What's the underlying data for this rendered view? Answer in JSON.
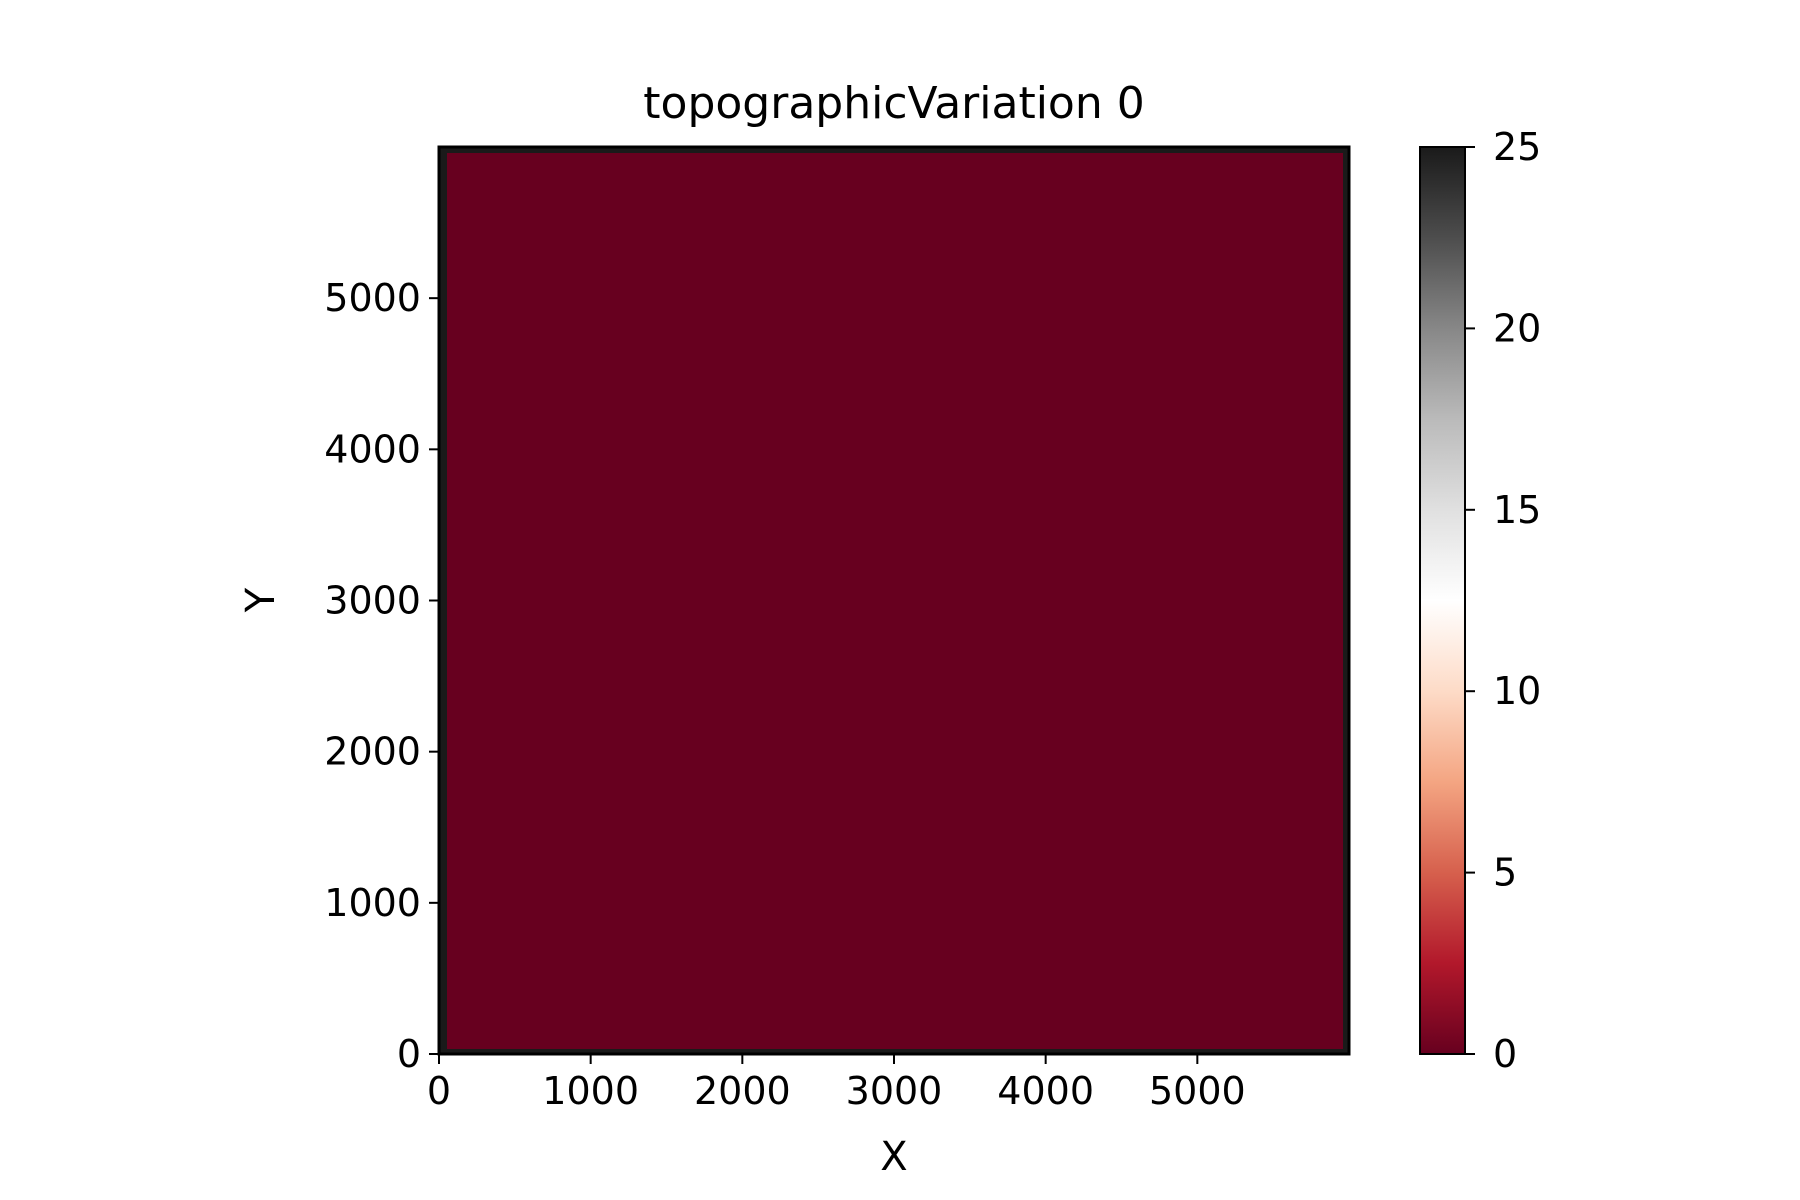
{
  "chart_data": {
    "type": "heatmap",
    "title": "topographicVariation 0",
    "xlabel": "X",
    "ylabel": "Y",
    "xlim": [
      0,
      6000
    ],
    "ylim": [
      0,
      6000
    ],
    "xticks": [
      0,
      1000,
      2000,
      3000,
      4000,
      5000
    ],
    "yticks": [
      0,
      1000,
      2000,
      3000,
      4000,
      5000
    ],
    "xtick_labels": [
      "0",
      "1000",
      "2000",
      "3000",
      "4000",
      "5000"
    ],
    "ytick_labels": [
      "0",
      "1000",
      "2000",
      "3000",
      "4000",
      "5000"
    ],
    "field": {
      "interior_value": 0,
      "boundary_value": 25,
      "description": "uniform field"
    },
    "colorbar": {
      "colormap": "RdGy",
      "min": 0,
      "max": 25,
      "ticks": [
        0,
        5,
        10,
        15,
        20,
        25
      ],
      "tick_labels": [
        "0",
        "5",
        "10",
        "15",
        "20",
        "25"
      ],
      "placement": "right"
    },
    "colors": {
      "low": "#67001f",
      "high": "#1a1a1a"
    },
    "grid": false
  }
}
